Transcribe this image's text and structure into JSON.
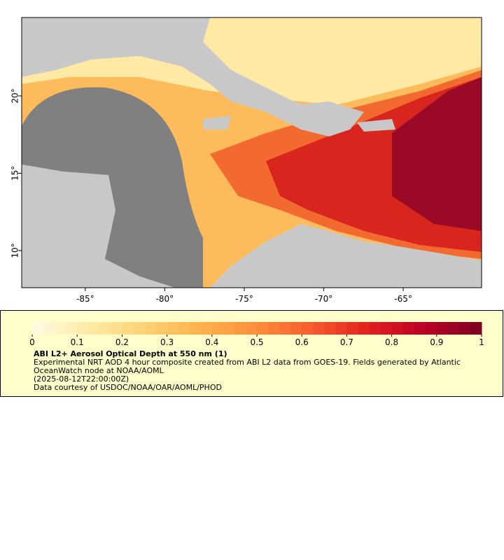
{
  "chart_data": {
    "type": "map",
    "xlim": [
      -89,
      -60.07
    ],
    "ylim": [
      7.6,
      25.07
    ],
    "xticks": [
      {
        "value": -85,
        "label": "-85°"
      },
      {
        "value": -80,
        "label": "-80°"
      },
      {
        "value": -75,
        "label": "-75°"
      },
      {
        "value": -70,
        "label": "-70°"
      },
      {
        "value": -65,
        "label": "-65°"
      }
    ],
    "yticks": [
      {
        "value": 10,
        "label": "10°"
      },
      {
        "value": 15,
        "label": "15°"
      },
      {
        "value": 20,
        "label": "20°"
      }
    ],
    "colorbar": {
      "title": "ABI L2+ Aerosol Optical Depth at 550 nm (1)",
      "lim": [
        0,
        1
      ],
      "ticks": [
        0,
        0.1,
        0.2,
        0.3,
        0.4,
        0.5,
        0.6,
        0.7,
        0.8,
        0.9,
        1
      ],
      "colors": [
        "#fffbe4",
        "#ffeaa6",
        "#fed276",
        "#feb24c",
        "#fd8d3c",
        "#f55a2c",
        "#e0201e",
        "#bb0026",
        "#7c0024"
      ]
    },
    "description": [
      "Experimental NRT AOD 4 hour composite created from ABI L2 data from GOES-19. Fields generated by Atlantic OceanWatch node at NOAA/AOML",
      "(2025-08-12T22:00:00Z)",
      "Data courtesy of USDOC/NOAA/OAR/AOML/PHOD"
    ]
  }
}
